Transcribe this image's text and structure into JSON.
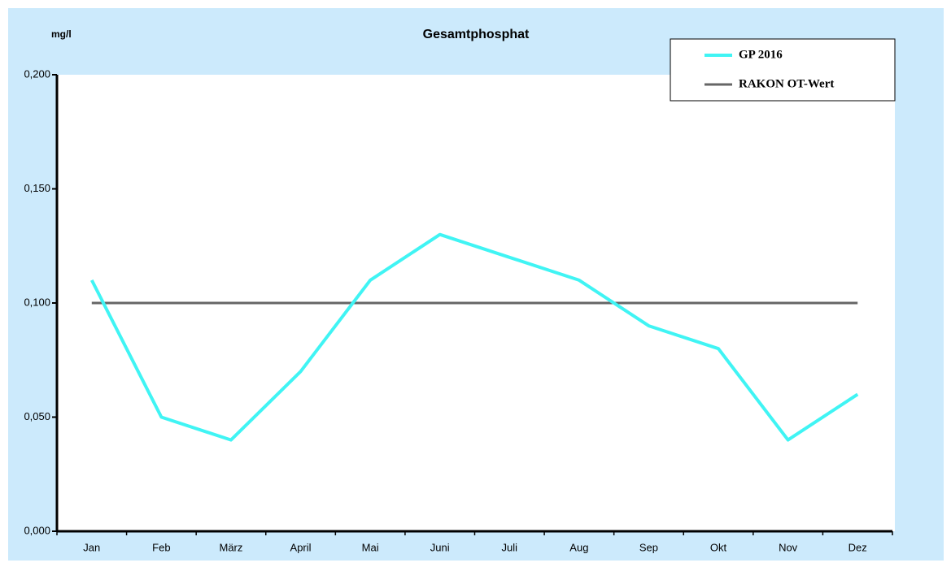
{
  "chart_data": {
    "type": "line",
    "title": "Gesamtphosphat",
    "y_label": "mg/l",
    "categories": [
      "Jan",
      "Feb",
      "März",
      "April",
      "Mai",
      "Juni",
      "Juli",
      "Aug",
      "Sep",
      "Okt",
      "Nov",
      "Dez"
    ],
    "series": [
      {
        "name": "GP 2016",
        "color": "#40f4f4",
        "values": [
          0.11,
          0.05,
          0.04,
          0.07,
          0.11,
          0.13,
          0.12,
          0.11,
          0.09,
          0.08,
          0.04,
          0.06
        ]
      },
      {
        "name": "RAKON OT-Wert",
        "color": "#666666",
        "values": [
          0.1,
          0.1,
          0.1,
          0.1,
          0.1,
          0.1,
          0.1,
          0.1,
          0.1,
          0.1,
          0.1,
          0.1
        ]
      }
    ],
    "ylim": [
      0,
      0.2
    ],
    "yticks": [
      {
        "value": 0,
        "label": "0,000"
      },
      {
        "value": 0.05,
        "label": "0,050"
      },
      {
        "value": 0.1,
        "label": "0,100"
      },
      {
        "value": 0.15,
        "label": "0,150"
      },
      {
        "value": 0.2,
        "label": "0,200"
      }
    ],
    "legend": "top-right",
    "grid": false
  }
}
